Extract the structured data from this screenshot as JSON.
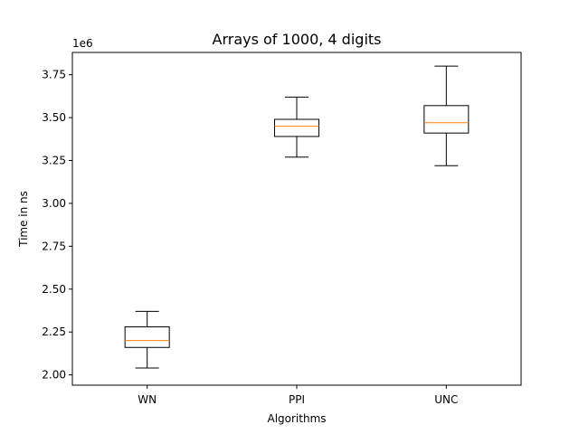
{
  "chart_data": {
    "type": "box",
    "title": "Arrays of 1000, 4 digits",
    "xlabel": "Algorithms",
    "ylabel": "Time in ns",
    "offset_label": "1e6",
    "ylim": [
      1.94,
      3.88
    ],
    "yticks": [
      2.0,
      2.25,
      2.5,
      2.75,
      3.0,
      3.25,
      3.5,
      3.75
    ],
    "ytick_labels": [
      "2.00",
      "2.25",
      "2.50",
      "2.75",
      "3.00",
      "3.25",
      "3.50",
      "3.75"
    ],
    "categories": [
      "WN",
      "PPI",
      "UNC"
    ],
    "boxes": [
      {
        "label": "WN",
        "whislo": 2.04,
        "q1": 2.16,
        "med": 2.2,
        "q3": 2.28,
        "whishi": 2.37
      },
      {
        "label": "PPI",
        "whislo": 3.27,
        "q1": 3.39,
        "med": 3.45,
        "q3": 3.49,
        "whishi": 3.62
      },
      {
        "label": "UNC",
        "whislo": 3.22,
        "q1": 3.41,
        "med": 3.47,
        "q3": 3.57,
        "whishi": 3.8
      }
    ],
    "grid": false,
    "colors": {
      "box": "#000000",
      "median": "#ff7f0e"
    }
  }
}
